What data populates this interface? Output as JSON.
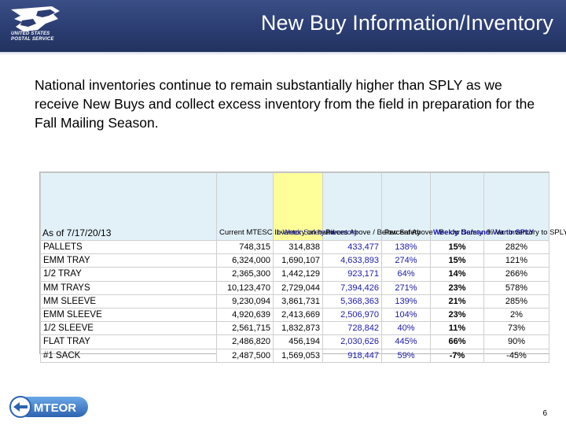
{
  "header": {
    "title": "New Buy Information/Inventory",
    "logo_text_1": "UNITED STATES",
    "logo_text_2": "POSTAL SERVICE"
  },
  "body": {
    "text": "National inventories continue to remain substantially higher than SPLY as we receive New Buys and collect excess inventory from the field in preparation for the Fall Mailing Season."
  },
  "table": {
    "as_of": "As of 7/17/20/13",
    "columns": [
      "Current MTESC Inventory on hand",
      "1-Week Safety Inventory",
      "Pieces Above / Below Safety",
      "Percent Above / Below Safety",
      "Weekly Demand Var to SPLY",
      "% Var Inventory to SPLY"
    ],
    "rows": [
      {
        "label": "PALLETS",
        "current": "748,315",
        "safety": "314,838",
        "pieces": "433,477",
        "percent": "138%",
        "weekly": "15%",
        "var": "282%"
      },
      {
        "label": "EMM TRAY",
        "current": "6,324,000",
        "safety": "1,690,107",
        "pieces": "4,633,893",
        "percent": "274%",
        "weekly": "15%",
        "var": "121%"
      },
      {
        "label": "1/2 TRAY",
        "current": "2,365,300",
        "safety": "1,442,129",
        "pieces": "923,171",
        "percent": "64%",
        "weekly": "14%",
        "var": "266%"
      },
      {
        "label": "MM TRAYS",
        "current": "10,123,470",
        "safety": "2,729,044",
        "pieces": "7,394,426",
        "percent": "271%",
        "weekly": "23%",
        "var": "578%"
      },
      {
        "label": "MM SLEEVE",
        "current": "9,230,094",
        "safety": "3,861,731",
        "pieces": "5,368,363",
        "percent": "139%",
        "weekly": "21%",
        "var": "285%"
      },
      {
        "label": "EMM SLEEVE",
        "current": "4,920,639",
        "safety": "2,413,669",
        "pieces": "2,506,970",
        "percent": "104%",
        "weekly": "23%",
        "var": "2%"
      },
      {
        "label": "1/2 SLEEVE",
        "current": "2,561,715",
        "safety": "1,832,873",
        "pieces": "728,842",
        "percent": "40%",
        "weekly": "11%",
        "var": "73%"
      },
      {
        "label": "FLAT TRAY",
        "current": "2,486,820",
        "safety": "456,194",
        "pieces": "2,030,626",
        "percent": "445%",
        "weekly": "66%",
        "var": "90%"
      },
      {
        "label": "#1 SACK",
        "current": "2,487,500",
        "safety": "1,569,053",
        "pieces": "918,447",
        "percent": "59%",
        "weekly": "-7%",
        "var": "-45%"
      }
    ]
  },
  "footer": {
    "badge": "MTEOR",
    "page_number": "6"
  },
  "colors": {
    "header_bg": "#2b3d72",
    "table_header_cyan": "#e2f1f8",
    "table_header_yellow": "#ffff99",
    "blue_text": "#1a1aa8",
    "badge_blue": "#3a7bc8"
  }
}
